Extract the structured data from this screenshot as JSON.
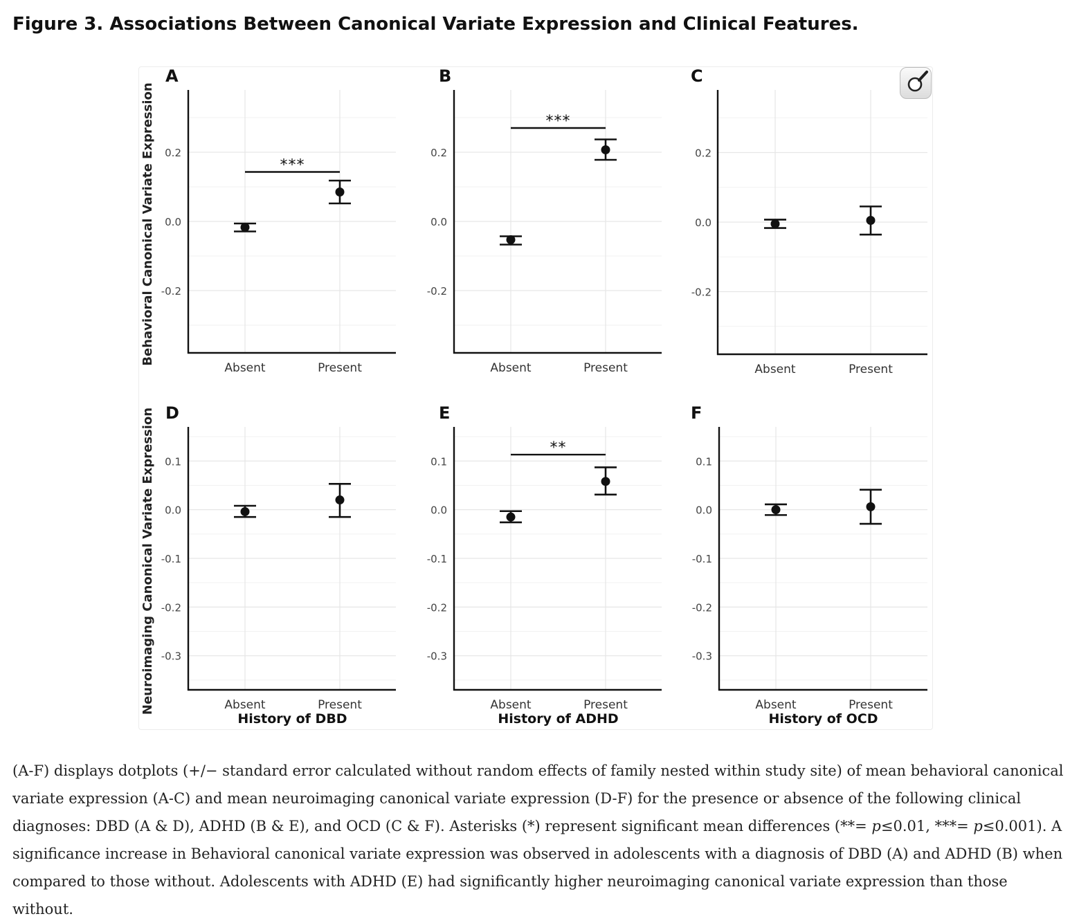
{
  "figure": {
    "title": "Figure 3. Associations Between Canonical Variate Expression and Clinical Features."
  },
  "caption": {
    "p1": "(A-F) displays dotplots (+/− standard error calculated without random effects of family nested within study site) of mean behavioral canonical variate expression (A-C) and mean neuroimaging canonical variate expression (D-F) for the presence or absence of the following clinical diagnoses: DBD (A & D), ADHD (B & E), and OCD (C & F). Asterisks (*) represent significant mean differences (**= ",
    "p_symbol": "p",
    "p2": "≤0.01, ***= ",
    "p3": "≤0.001). A significance increase in Behavioral canonical variate expression was observed in adolescents with a diagnosis of DBD (A) and ADHD (B) when compared to those without. Adolescents with ADHD (E) had significantly higher neuroimaging canonical variate expression than those without."
  },
  "zoom_icon": "magnifier-icon",
  "chart_data": [
    {
      "panel": "A",
      "type": "scatter",
      "ylabel": "Behavioral Canonical Variate Expression",
      "xlabel": "",
      "categories": [
        "Absent",
        "Present"
      ],
      "ylim": [
        -0.38,
        0.38
      ],
      "yticks": [
        -0.2,
        0.0,
        0.2
      ],
      "ytick_labels": [
        "-0.2",
        "0.0",
        "0.2"
      ],
      "grid": true,
      "points": [
        {
          "x": "Absent",
          "y": -0.017,
          "lo": -0.029,
          "hi": -0.006
        },
        {
          "x": "Present",
          "y": 0.085,
          "lo": 0.052,
          "hi": 0.118
        }
      ],
      "significance": {
        "label": "***",
        "y": 0.143
      }
    },
    {
      "panel": "B",
      "type": "scatter",
      "ylabel": "",
      "xlabel": "",
      "categories": [
        "Absent",
        "Present"
      ],
      "ylim": [
        -0.38,
        0.38
      ],
      "yticks": [
        -0.2,
        0.0,
        0.2
      ],
      "ytick_labels": [
        "-0.2",
        "0.0",
        "0.2"
      ],
      "grid": true,
      "points": [
        {
          "x": "Absent",
          "y": -0.053,
          "lo": -0.067,
          "hi": -0.043
        },
        {
          "x": "Present",
          "y": 0.207,
          "lo": 0.178,
          "hi": 0.237
        }
      ],
      "significance": {
        "label": "***",
        "y": 0.27
      }
    },
    {
      "panel": "C",
      "type": "scatter",
      "ylabel": "",
      "xlabel": "",
      "categories": [
        "Absent",
        "Present"
      ],
      "ylim": [
        -0.38,
        0.38
      ],
      "yticks": [
        -0.2,
        0.0,
        0.2
      ],
      "ytick_labels": [
        "-0.2",
        "0.0",
        "0.2"
      ],
      "grid": true,
      "points": [
        {
          "x": "Absent",
          "y": -0.005,
          "lo": -0.017,
          "hi": 0.007
        },
        {
          "x": "Present",
          "y": 0.005,
          "lo": -0.036,
          "hi": 0.045
        }
      ],
      "significance": null
    },
    {
      "panel": "D",
      "type": "scatter",
      "ylabel": "Neuroimaging Canonical Variate Expression",
      "xlabel": "History of DBD",
      "categories": [
        "Absent",
        "Present"
      ],
      "ylim": [
        -0.37,
        0.17
      ],
      "yticks": [
        -0.3,
        -0.2,
        -0.1,
        0.0,
        0.1
      ],
      "ytick_labels": [
        "-0.3",
        "-0.2",
        "-0.1",
        "0.0",
        "0.1"
      ],
      "grid": true,
      "points": [
        {
          "x": "Absent",
          "y": -0.004,
          "lo": -0.015,
          "hi": 0.008
        },
        {
          "x": "Present",
          "y": 0.02,
          "lo": -0.015,
          "hi": 0.053
        }
      ],
      "significance": null
    },
    {
      "panel": "E",
      "type": "scatter",
      "ylabel": "",
      "xlabel": "History of ADHD",
      "categories": [
        "Absent",
        "Present"
      ],
      "ylim": [
        -0.37,
        0.17
      ],
      "yticks": [
        -0.3,
        -0.2,
        -0.1,
        0.0,
        0.1
      ],
      "ytick_labels": [
        "-0.3",
        "-0.2",
        "-0.1",
        "0.0",
        "0.1"
      ],
      "grid": true,
      "points": [
        {
          "x": "Absent",
          "y": -0.015,
          "lo": -0.026,
          "hi": -0.003
        },
        {
          "x": "Present",
          "y": 0.058,
          "lo": 0.031,
          "hi": 0.087
        }
      ],
      "significance": {
        "label": "**",
        "y": 0.113
      }
    },
    {
      "panel": "F",
      "type": "scatter",
      "ylabel": "",
      "xlabel": "History of OCD",
      "categories": [
        "Absent",
        "Present"
      ],
      "ylim": [
        -0.37,
        0.17
      ],
      "yticks": [
        -0.3,
        -0.2,
        -0.1,
        0.0,
        0.1
      ],
      "ytick_labels": [
        "-0.3",
        "-0.2",
        "-0.1",
        "0.0",
        "0.1"
      ],
      "grid": true,
      "points": [
        {
          "x": "Absent",
          "y": 0.0,
          "lo": -0.011,
          "hi": 0.011
        },
        {
          "x": "Present",
          "y": 0.006,
          "lo": -0.029,
          "hi": 0.041
        }
      ],
      "significance": null
    }
  ]
}
